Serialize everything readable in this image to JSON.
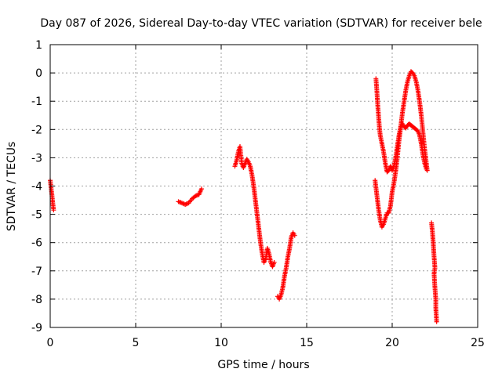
{
  "chart_data": {
    "type": "scatter",
    "title": "Day 087 of 2026, Sidereal Day-to-day VTEC variation (SDTVAR) for receiver bele",
    "xlabel": "GPS time / hours",
    "ylabel": "SDTVAR / TECUs",
    "xlim": [
      0,
      25
    ],
    "ylim": [
      -9,
      1
    ],
    "xticks": [
      "0",
      "5",
      "10",
      "15",
      "20",
      "25"
    ],
    "yticks": [
      "1",
      "0",
      "-1",
      "-2",
      "-3",
      "-4",
      "-5",
      "-6",
      "-7",
      "-8",
      "-9"
    ],
    "grid": true,
    "marker": "+",
    "color": "#ff0000",
    "segments": [
      [
        [
          0.0,
          -3.8
        ],
        [
          0.05,
          -4.05
        ],
        [
          0.1,
          -4.3
        ],
        [
          0.15,
          -4.6
        ],
        [
          0.2,
          -4.85
        ]
      ],
      [
        [
          7.5,
          -4.55
        ],
        [
          7.7,
          -4.6
        ],
        [
          7.9,
          -4.65
        ],
        [
          8.1,
          -4.6
        ],
        [
          8.3,
          -4.45
        ],
        [
          8.5,
          -4.35
        ],
        [
          8.7,
          -4.3
        ],
        [
          8.85,
          -4.1
        ]
      ],
      [
        [
          10.8,
          -3.3
        ],
        [
          10.9,
          -3.1
        ],
        [
          11.0,
          -2.8
        ],
        [
          11.1,
          -2.6
        ],
        [
          11.2,
          -3.2
        ],
        [
          11.3,
          -3.35
        ],
        [
          11.4,
          -3.2
        ],
        [
          11.5,
          -3.05
        ],
        [
          11.6,
          -3.15
        ],
        [
          11.7,
          -3.3
        ],
        [
          11.8,
          -3.6
        ],
        [
          11.9,
          -4.0
        ],
        [
          12.0,
          -4.5
        ],
        [
          12.1,
          -5.0
        ],
        [
          12.2,
          -5.5
        ],
        [
          12.3,
          -6.0
        ],
        [
          12.4,
          -6.4
        ],
        [
          12.5,
          -6.7
        ],
        [
          12.6,
          -6.6
        ],
        [
          12.7,
          -6.2
        ],
        [
          12.8,
          -6.4
        ],
        [
          12.9,
          -6.7
        ],
        [
          13.0,
          -6.85
        ],
        [
          13.1,
          -6.7
        ]
      ],
      [
        [
          13.3,
          -7.9
        ],
        [
          13.4,
          -8.0
        ],
        [
          13.5,
          -7.85
        ],
        [
          13.6,
          -7.6
        ],
        [
          13.7,
          -7.2
        ],
        [
          13.8,
          -6.9
        ],
        [
          13.9,
          -6.5
        ],
        [
          14.0,
          -6.2
        ],
        [
          14.1,
          -5.8
        ],
        [
          14.2,
          -5.65
        ],
        [
          14.3,
          -5.75
        ]
      ],
      [
        [
          19.05,
          -0.2
        ],
        [
          19.1,
          -0.6
        ],
        [
          19.15,
          -1.1
        ],
        [
          19.2,
          -1.5
        ],
        [
          19.25,
          -1.9
        ],
        [
          19.3,
          -2.2
        ],
        [
          19.4,
          -2.5
        ],
        [
          19.5,
          -2.8
        ],
        [
          19.6,
          -3.2
        ],
        [
          19.7,
          -3.5
        ],
        [
          19.8,
          -3.45
        ],
        [
          19.9,
          -3.3
        ],
        [
          20.0,
          -3.45
        ],
        [
          20.1,
          -3.3
        ],
        [
          20.2,
          -3.0
        ],
        [
          20.3,
          -2.6
        ],
        [
          20.4,
          -2.2
        ],
        [
          20.5,
          -1.9
        ],
        [
          20.6,
          -1.8
        ],
        [
          20.7,
          -1.9
        ],
        [
          20.8,
          -1.95
        ],
        [
          20.9,
          -1.85
        ],
        [
          21.0,
          -1.8
        ],
        [
          21.1,
          -1.85
        ],
        [
          21.2,
          -1.9
        ],
        [
          21.3,
          -1.95
        ],
        [
          21.4,
          -2.0
        ],
        [
          21.5,
          -2.05
        ],
        [
          21.6,
          -2.2
        ],
        [
          21.7,
          -2.5
        ],
        [
          21.8,
          -2.9
        ],
        [
          21.9,
          -3.2
        ],
        [
          22.0,
          -3.4
        ]
      ],
      [
        [
          19.0,
          -3.8
        ],
        [
          19.1,
          -4.3
        ],
        [
          19.2,
          -4.8
        ],
        [
          19.3,
          -5.2
        ],
        [
          19.4,
          -5.45
        ],
        [
          19.5,
          -5.35
        ],
        [
          19.6,
          -5.15
        ],
        [
          19.7,
          -4.95
        ],
        [
          19.8,
          -4.95
        ],
        [
          19.9,
          -4.7
        ],
        [
          20.0,
          -4.2
        ],
        [
          20.1,
          -3.9
        ],
        [
          20.2,
          -3.5
        ],
        [
          20.3,
          -3.0
        ],
        [
          20.4,
          -2.4
        ],
        [
          20.5,
          -1.9
        ],
        [
          20.6,
          -1.4
        ],
        [
          20.7,
          -1.0
        ],
        [
          20.8,
          -0.6
        ],
        [
          20.9,
          -0.3
        ],
        [
          21.0,
          -0.1
        ],
        [
          21.1,
          0.05
        ],
        [
          21.2,
          0.0
        ],
        [
          21.3,
          -0.1
        ],
        [
          21.4,
          -0.3
        ],
        [
          21.5,
          -0.6
        ],
        [
          21.6,
          -1.0
        ],
        [
          21.7,
          -1.5
        ],
        [
          21.8,
          -2.1
        ],
        [
          21.9,
          -2.7
        ],
        [
          22.0,
          -3.2
        ],
        [
          22.05,
          -3.45
        ]
      ],
      [
        [
          22.3,
          -5.3
        ],
        [
          22.35,
          -5.6
        ],
        [
          22.4,
          -6.0
        ],
        [
          22.45,
          -6.5
        ],
        [
          22.5,
          -6.9
        ],
        [
          22.45,
          -7.1
        ],
        [
          22.5,
          -7.6
        ],
        [
          22.55,
          -8.0
        ],
        [
          22.55,
          -8.3
        ],
        [
          22.6,
          -8.8
        ]
      ]
    ]
  }
}
